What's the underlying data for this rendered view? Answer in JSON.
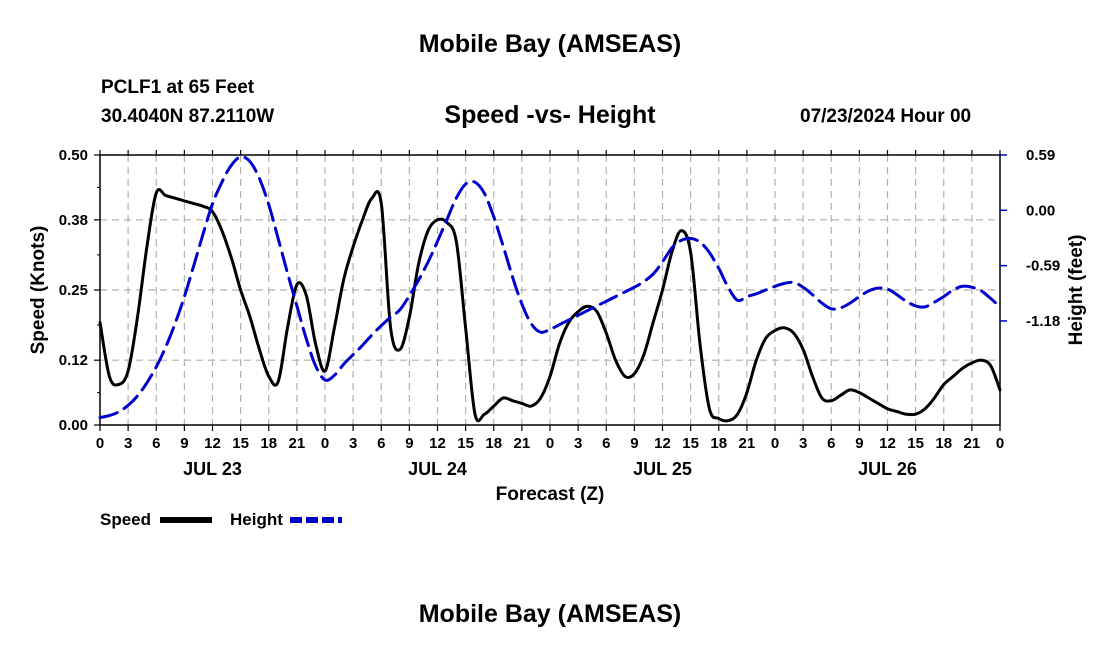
{
  "header": {
    "title": "Mobile Bay (AMSEAS)",
    "station": "PCLF1 at 65 Feet",
    "coords": "30.4040N  87.2110W",
    "subtitle": "Speed -vs- Height",
    "datetime": "07/23/2024 Hour 00",
    "footer_title": "Mobile Bay (AMSEAS)"
  },
  "chart_data": {
    "type": "line",
    "title": "Speed -vs- Height",
    "xlabel": "Forecast (Z)",
    "ylabel": "Speed (Knots)",
    "y2label": "Height (feet)",
    "x_unit": "forecast hour",
    "xlim": [
      0,
      96
    ],
    "ylim": [
      0,
      0.5
    ],
    "y2lim": [
      -2.29,
      0.59
    ],
    "yticks": [
      0.0,
      0.12,
      0.25,
      0.38,
      0.5
    ],
    "ytick_labels": [
      "0.00",
      "0.12",
      "0.25",
      "0.38",
      "0.50"
    ],
    "y2ticks": [
      -1.18,
      -0.59,
      0.0,
      0.59
    ],
    "y2tick_labels": [
      "-1.18",
      "-0.59",
      "0.00",
      "0.59"
    ],
    "xticks": [
      0,
      3,
      6,
      9,
      12,
      15,
      18,
      21,
      24,
      27,
      30,
      33,
      36,
      39,
      42,
      45,
      48,
      51,
      54,
      57,
      60,
      63,
      66,
      69,
      72,
      75,
      78,
      81,
      84,
      87,
      90,
      93,
      96
    ],
    "xtick_labels": [
      "0",
      "3",
      "6",
      "9",
      "12",
      "15",
      "18",
      "21",
      "0",
      "3",
      "6",
      "9",
      "12",
      "15",
      "18",
      "21",
      "0",
      "3",
      "6",
      "9",
      "12",
      "15",
      "18",
      "21",
      "0",
      "3",
      "6",
      "9",
      "12",
      "15",
      "18",
      "21",
      "0"
    ],
    "date_labels": [
      {
        "label": "JUL 23",
        "x": 12
      },
      {
        "label": "JUL 24",
        "x": 36
      },
      {
        "label": "JUL 25",
        "x": 60
      },
      {
        "label": "JUL 26",
        "x": 84
      }
    ],
    "grid": true,
    "legend_position": "bottom-left",
    "series": [
      {
        "name": "Speed",
        "axis": "left",
        "color": "#000000",
        "dash": "solid",
        "x": [
          0,
          1,
          2,
          3,
          4,
          5,
          6,
          7,
          8,
          9,
          10,
          11,
          12,
          13,
          14,
          15,
          16,
          17,
          18,
          19,
          20,
          21,
          22,
          23,
          24,
          25,
          26,
          27,
          28,
          29,
          30,
          31,
          32,
          33,
          34,
          35,
          36,
          37,
          38,
          39,
          40,
          41,
          42,
          43,
          44,
          45,
          46,
          47,
          48,
          49,
          50,
          51,
          52,
          53,
          54,
          55,
          56,
          57,
          58,
          59,
          60,
          61,
          62,
          63,
          64,
          65,
          66,
          67,
          68,
          69,
          70,
          71,
          72,
          73,
          74,
          75,
          76,
          77,
          78,
          79,
          80,
          81,
          82,
          83,
          84,
          85,
          86,
          87,
          88,
          89,
          90,
          91,
          92,
          93,
          94,
          95,
          96
        ],
        "values": [
          0.19,
          0.09,
          0.075,
          0.1,
          0.2,
          0.33,
          0.43,
          0.425,
          0.42,
          0.415,
          0.41,
          0.405,
          0.395,
          0.36,
          0.31,
          0.25,
          0.2,
          0.14,
          0.09,
          0.08,
          0.18,
          0.26,
          0.24,
          0.15,
          0.1,
          0.18,
          0.27,
          0.33,
          0.38,
          0.42,
          0.41,
          0.18,
          0.14,
          0.2,
          0.3,
          0.36,
          0.38,
          0.375,
          0.34,
          0.18,
          0.02,
          0.02,
          0.035,
          0.05,
          0.045,
          0.04,
          0.035,
          0.05,
          0.09,
          0.15,
          0.19,
          0.21,
          0.22,
          0.21,
          0.17,
          0.12,
          0.09,
          0.095,
          0.13,
          0.19,
          0.25,
          0.32,
          0.36,
          0.32,
          0.15,
          0.03,
          0.012,
          0.008,
          0.02,
          0.06,
          0.12,
          0.16,
          0.175,
          0.18,
          0.17,
          0.14,
          0.09,
          0.05,
          0.045,
          0.055,
          0.065,
          0.06,
          0.05,
          0.04,
          0.03,
          0.025,
          0.02,
          0.02,
          0.03,
          0.05,
          0.075,
          0.09,
          0.105,
          0.115,
          0.12,
          0.11,
          0.065
        ]
      },
      {
        "name": "Height",
        "axis": "right",
        "color": "#0000cc",
        "dash": "dashed",
        "x": [
          0,
          1,
          2,
          3,
          4,
          5,
          6,
          7,
          8,
          9,
          10,
          11,
          12,
          13,
          14,
          15,
          16,
          17,
          18,
          19,
          20,
          21,
          22,
          23,
          24,
          25,
          26,
          27,
          28,
          29,
          30,
          31,
          32,
          33,
          34,
          35,
          36,
          37,
          38,
          39,
          40,
          41,
          42,
          43,
          44,
          45,
          46,
          47,
          48,
          49,
          50,
          51,
          52,
          53,
          54,
          55,
          56,
          57,
          58,
          59,
          60,
          61,
          62,
          63,
          64,
          65,
          66,
          67,
          68,
          69,
          70,
          71,
          72,
          73,
          74,
          75,
          76,
          77,
          78,
          79,
          80,
          81,
          82,
          83,
          84,
          85,
          86,
          87,
          88,
          89,
          90,
          91,
          92,
          93,
          94,
          95,
          96
        ],
        "values": [
          -2.21,
          -2.19,
          -2.15,
          -2.08,
          -1.98,
          -1.84,
          -1.67,
          -1.46,
          -1.21,
          -0.92,
          -0.59,
          -0.25,
          0.07,
          0.3,
          0.48,
          0.57,
          0.52,
          0.34,
          0.06,
          -0.3,
          -0.67,
          -1.02,
          -1.37,
          -1.66,
          -1.81,
          -1.76,
          -1.64,
          -1.54,
          -1.44,
          -1.33,
          -1.23,
          -1.14,
          -1.06,
          -0.91,
          -0.74,
          -0.55,
          -0.33,
          -0.1,
          0.13,
          0.28,
          0.3,
          0.18,
          -0.07,
          -0.38,
          -0.71,
          -1.0,
          -1.21,
          -1.3,
          -1.27,
          -1.22,
          -1.17,
          -1.12,
          -1.07,
          -1.02,
          -0.97,
          -0.92,
          -0.87,
          -0.82,
          -0.76,
          -0.68,
          -0.55,
          -0.4,
          -0.32,
          -0.3,
          -0.34,
          -0.45,
          -0.62,
          -0.82,
          -0.96,
          -0.92,
          -0.89,
          -0.85,
          -0.81,
          -0.78,
          -0.77,
          -0.82,
          -0.9,
          -0.99,
          -1.05,
          -1.04,
          -0.99,
          -0.92,
          -0.86,
          -0.83,
          -0.84,
          -0.9,
          -0.97,
          -1.02,
          -1.03,
          -0.98,
          -0.92,
          -0.85,
          -0.81,
          -0.82,
          -0.86,
          -0.94,
          -1.03
        ]
      }
    ]
  }
}
